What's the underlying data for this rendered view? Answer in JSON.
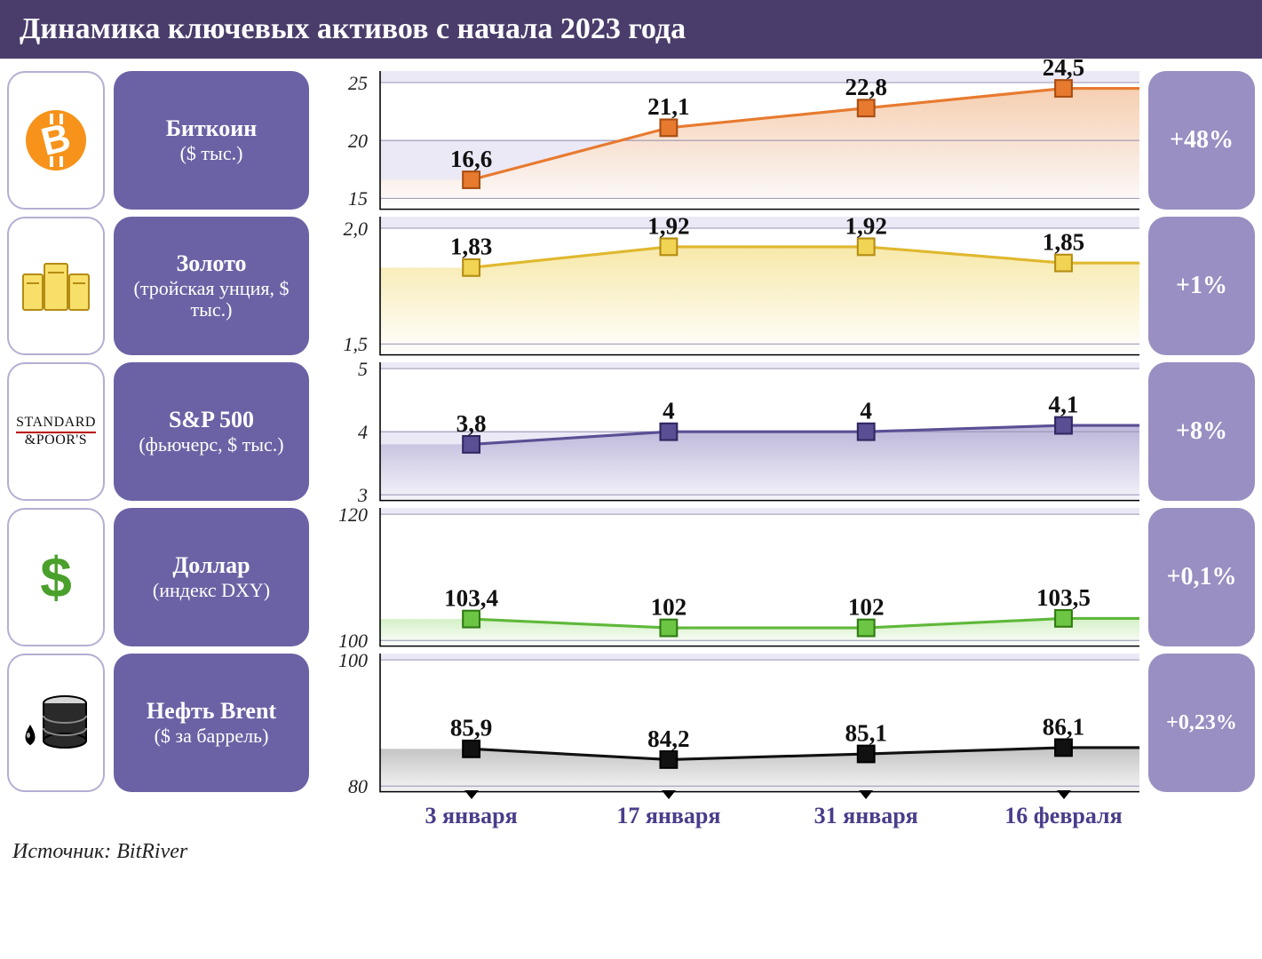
{
  "title": "Динамика ключевых активов с начала 2023 года",
  "source": "Источник: BitRiver",
  "dates": [
    "3 января",
    "17 января",
    "31 января",
    "16 февраля"
  ],
  "x_positions_pct": [
    12,
    38,
    64,
    90
  ],
  "label_box_color": "#6b62a5",
  "change_box_color": "#998fc2",
  "axis_text_color": "#222222",
  "xlabel_color": "#4a3d8a",
  "assets": [
    {
      "key": "bitcoin",
      "title": "Биткоин",
      "subtitle": "($ тыс.)",
      "change": "+48%",
      "values": [
        16.6,
        21.1,
        22.8,
        24.5
      ],
      "value_labels": [
        "16,6",
        "21,1",
        "22,8",
        "24,5"
      ],
      "y_ticks": [
        15,
        20,
        25
      ],
      "y_tick_labels": [
        "15",
        "20",
        "25"
      ],
      "ylim": [
        14,
        26
      ],
      "line_color": "#e77a2f",
      "marker_fill": "#e77a2f",
      "marker_stroke": "#a84d12",
      "area_gradient_top": "#f4c9a8",
      "area_gradient_bottom": "#ffffff",
      "bg_band_color": "#dcd7ee",
      "grid_color": "#9a93b5",
      "icon": {
        "type": "bitcoin",
        "bg": "#f7931a",
        "fg": "#ffffff"
      }
    },
    {
      "key": "gold",
      "title": "Золото",
      "subtitle": "(тройская унция, $ тыс.)",
      "change": "+1%",
      "values": [
        1.83,
        1.92,
        1.92,
        1.85
      ],
      "value_labels": [
        "1,83",
        "1,92",
        "1,92",
        "1,85"
      ],
      "y_ticks": [
        1.5,
        2.0
      ],
      "y_tick_labels": [
        "1,5",
        "2,0"
      ],
      "ylim": [
        1.45,
        2.05
      ],
      "line_color": "#e0b82e",
      "marker_fill": "#f2d454",
      "marker_stroke": "#b48c12",
      "area_gradient_top": "#f6e6a0",
      "area_gradient_bottom": "#ffffff",
      "bg_band_color": "#dcd7ee",
      "grid_color": "#9a93b5",
      "icon": {
        "type": "gold",
        "bar_fill": "#f7df6a",
        "bar_stroke": "#b48c12"
      }
    },
    {
      "key": "sp500",
      "title": "S&P 500",
      "subtitle": "(фьючерс, $ тыс.)",
      "change": "+8%",
      "values": [
        3.8,
        4.0,
        4.0,
        4.1
      ],
      "value_labels": [
        "3,8",
        "4",
        "4",
        "4,1"
      ],
      "y_ticks": [
        3,
        4,
        5
      ],
      "y_tick_labels": [
        "3",
        "4",
        "5"
      ],
      "ylim": [
        2.9,
        5.1
      ],
      "line_color": "#5a4f94",
      "marker_fill": "#5a4f94",
      "marker_stroke": "#2f2760",
      "area_gradient_top": "#b6afd6",
      "area_gradient_bottom": "#f6f5fb",
      "bg_band_color": "#dcd7ee",
      "grid_color": "#9a93b5",
      "icon": {
        "type": "sp",
        "text_top": "STANDARD",
        "text_bottom": "&POOR'S"
      }
    },
    {
      "key": "dollar",
      "title": "Доллар",
      "subtitle": "(индекс DXY)",
      "change": "+0,1%",
      "values": [
        103.4,
        102,
        102,
        103.5
      ],
      "value_labels": [
        "103,4",
        "102",
        "102",
        "103,5"
      ],
      "y_ticks": [
        100,
        120
      ],
      "y_tick_labels": [
        "100",
        "120"
      ],
      "ylim": [
        99,
        121
      ],
      "line_color": "#5fb83a",
      "marker_fill": "#6cc644",
      "marker_stroke": "#2f7a12",
      "area_gradient_top": "#cfeec0",
      "area_gradient_bottom": "#ffffff",
      "bg_band_color": "#dcd7ee",
      "grid_color": "#9a93b5",
      "icon": {
        "type": "dollar",
        "color": "#4aa02c"
      }
    },
    {
      "key": "brent",
      "title": "Нефть Brent",
      "subtitle": "($ за баррель)",
      "change": "+0,23%",
      "values": [
        85.9,
        84.2,
        85.1,
        86.1
      ],
      "value_labels": [
        "85,9",
        "84,2",
        "85,1",
        "86,1"
      ],
      "y_ticks": [
        80,
        100
      ],
      "y_tick_labels": [
        "80",
        "100"
      ],
      "ylim": [
        79,
        101
      ],
      "line_color": "#111111",
      "marker_fill": "#111111",
      "marker_stroke": "#000000",
      "area_gradient_top": "#bdbdbd",
      "area_gradient_bottom": "#f4f4f4",
      "bg_band_color": "#dcd7ee",
      "grid_color": "#9a93b5",
      "icon": {
        "type": "oil",
        "fill": "#2a2a2a",
        "stroke": "#000000",
        "drop": "#000000"
      }
    }
  ],
  "chart_style": {
    "line_width": 3,
    "marker_size": 18,
    "marker_stroke_width": 2,
    "value_font_size": 26,
    "value_font_weight": 700,
    "value_color": "#111111"
  }
}
